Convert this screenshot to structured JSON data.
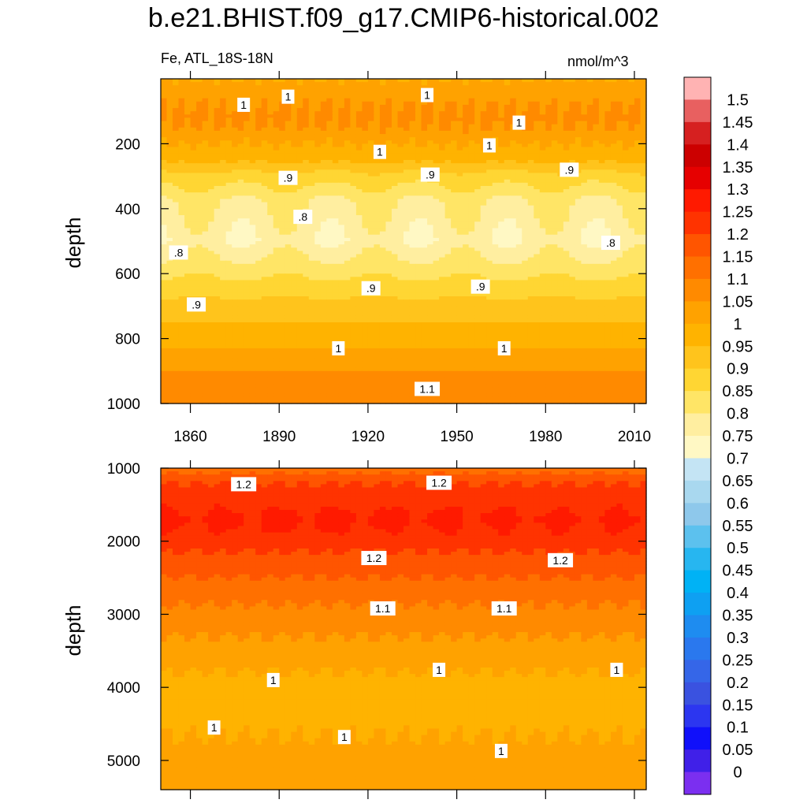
{
  "title": "b.e21.BHIST.f09_g17.CMIP6-historical.002",
  "subtitle_left": "Fe, ATL_18S-18N",
  "subtitle_right": "nmol/m^3",
  "chart_data": [
    {
      "type": "heatmap",
      "panel": "upper",
      "ylabel": "depth",
      "xlim": [
        1850,
        2014
      ],
      "ylim": [
        1000,
        0
      ],
      "xticks": [
        "1860",
        "1890",
        "1920",
        "1950",
        "1980",
        "2010"
      ],
      "yticks": [
        "200",
        "400",
        "600",
        "800",
        "1000"
      ],
      "depth_profile": [
        {
          "depth": 0,
          "value": 1.0
        },
        {
          "depth": 120,
          "value": 1.07
        },
        {
          "depth": 250,
          "value": 0.96
        },
        {
          "depth": 300,
          "value": 0.88
        },
        {
          "depth": 380,
          "value": 0.8
        },
        {
          "depth": 500,
          "value": 0.76
        },
        {
          "depth": 600,
          "value": 0.84
        },
        {
          "depth": 700,
          "value": 0.92
        },
        {
          "depth": 800,
          "value": 0.98
        },
        {
          "depth": 900,
          "value": 1.05
        },
        {
          "depth": 1000,
          "value": 1.1
        }
      ],
      "contour_labels": [
        {
          "text": "1",
          "year": 1878,
          "depth": 80
        },
        {
          "text": "1",
          "year": 1893,
          "depth": 55
        },
        {
          "text": "1",
          "year": 1940,
          "depth": 50
        },
        {
          "text": "1",
          "year": 1971,
          "depth": 135
        },
        {
          "text": "1",
          "year": 1924,
          "depth": 225
        },
        {
          "text": "1",
          "year": 1961,
          "depth": 205
        },
        {
          "text": ".9",
          "year": 1893,
          "depth": 305
        },
        {
          "text": ".9",
          "year": 1941,
          "depth": 295
        },
        {
          "text": ".9",
          "year": 1988,
          "depth": 280
        },
        {
          "text": ".8",
          "year": 1898,
          "depth": 425
        },
        {
          "text": ".8",
          "year": 1856,
          "depth": 535
        },
        {
          "text": ".8",
          "year": 2002,
          "depth": 505
        },
        {
          "text": ".9",
          "year": 1862,
          "depth": 695
        },
        {
          "text": ".9",
          "year": 1921,
          "depth": 645
        },
        {
          "text": ".9",
          "year": 1958,
          "depth": 640
        },
        {
          "text": "1",
          "year": 1910,
          "depth": 830
        },
        {
          "text": "1",
          "year": 1966,
          "depth": 830
        },
        {
          "text": "1.1",
          "year": 1940,
          "depth": 955
        }
      ]
    },
    {
      "type": "heatmap",
      "panel": "lower",
      "ylabel": "depth",
      "xlim": [
        1850,
        2014
      ],
      "ylim": [
        5400,
        1000
      ],
      "yticks": [
        "1000",
        "2000",
        "3000",
        "4000",
        "5000"
      ],
      "depth_profile": [
        {
          "depth": 1000,
          "value": 1.12
        },
        {
          "depth": 1200,
          "value": 1.2
        },
        {
          "depth": 1500,
          "value": 1.23
        },
        {
          "depth": 1700,
          "value": 1.27
        },
        {
          "depth": 2000,
          "value": 1.22
        },
        {
          "depth": 2300,
          "value": 1.18
        },
        {
          "depth": 2700,
          "value": 1.12
        },
        {
          "depth": 3300,
          "value": 1.05
        },
        {
          "depth": 4000,
          "value": 0.98
        },
        {
          "depth": 4500,
          "value": 0.99
        },
        {
          "depth": 5000,
          "value": 1.02
        },
        {
          "depth": 5400,
          "value": 1.04
        }
      ],
      "contour_labels": [
        {
          "text": "1.2",
          "year": 1878,
          "depth": 1220
        },
        {
          "text": "1.2",
          "year": 1944,
          "depth": 1200
        },
        {
          "text": "1.2",
          "year": 1922,
          "depth": 2230
        },
        {
          "text": "1.2",
          "year": 1985,
          "depth": 2260
        },
        {
          "text": "1.1",
          "year": 1925,
          "depth": 2920
        },
        {
          "text": "1.1",
          "year": 1966,
          "depth": 2920
        },
        {
          "text": "1",
          "year": 1888,
          "depth": 3900
        },
        {
          "text": "1",
          "year": 1944,
          "depth": 3760
        },
        {
          "text": "1",
          "year": 2004,
          "depth": 3760
        },
        {
          "text": "1",
          "year": 1868,
          "depth": 4550
        },
        {
          "text": "1",
          "year": 1912,
          "depth": 4680
        },
        {
          "text": "1",
          "year": 1965,
          "depth": 4870
        }
      ]
    }
  ],
  "colorbar": {
    "labels": [
      "1.5",
      "1.45",
      "1.4",
      "1.35",
      "1.3",
      "1.25",
      "1.2",
      "1.15",
      "1.1",
      "1.05",
      "1",
      "0.95",
      "0.9",
      "0.85",
      "0.8",
      "0.75",
      "0.7",
      "0.65",
      "0.6",
      "0.55",
      "0.5",
      "0.45",
      "0.4",
      "0.35",
      "0.3",
      "0.25",
      "0.2",
      "0.15",
      "0.1",
      "0.05",
      "0"
    ],
    "colors": [
      "#ffb3b3",
      "#e86060",
      "#d62020",
      "#cc0000",
      "#e60000",
      "#ff1a00",
      "#ff3300",
      "#ff5500",
      "#ff7000",
      "#ff8a00",
      "#ffa200",
      "#ffb300",
      "#ffc41c",
      "#ffd633",
      "#ffe566",
      "#ffeea0",
      "#fff8c4",
      "#c4e4f4",
      "#a9d8ef",
      "#8ec8eb",
      "#5cc1ee",
      "#27b6f0",
      "#00b2f5",
      "#0ea0f2",
      "#1e8cf0",
      "#2a78ee",
      "#3566e8",
      "#3a52e0",
      "#2c36f0",
      "#1010fa",
      "#4020e8",
      "#7b2ff0"
    ]
  }
}
